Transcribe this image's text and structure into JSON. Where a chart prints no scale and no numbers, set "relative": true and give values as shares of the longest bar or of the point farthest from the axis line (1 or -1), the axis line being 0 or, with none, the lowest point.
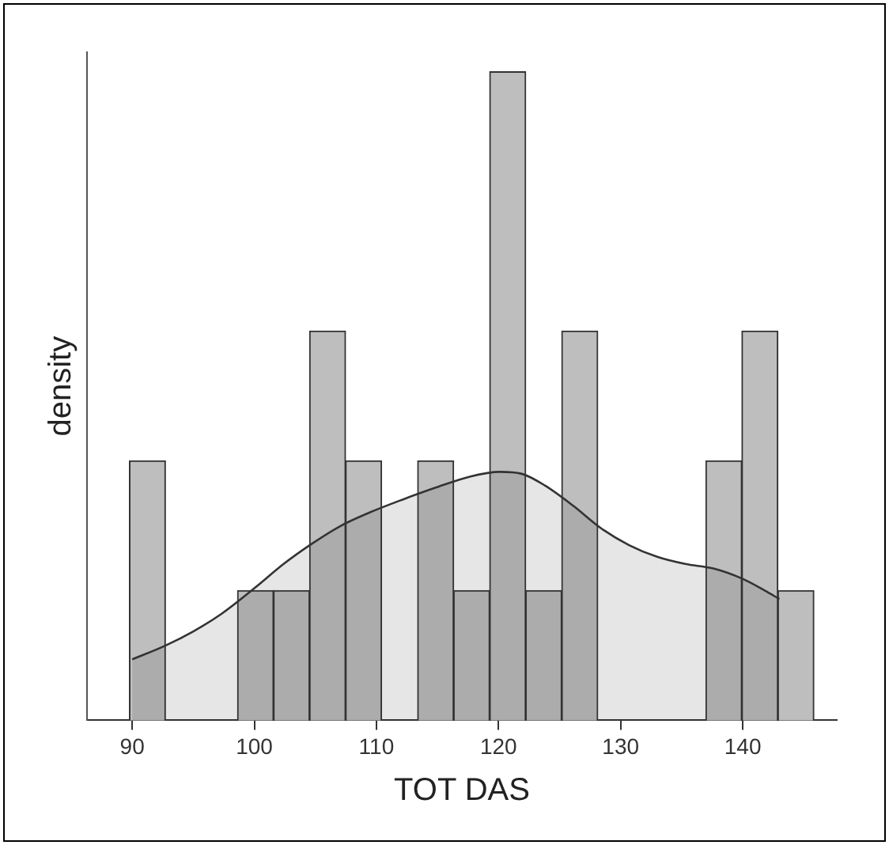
{
  "chart_data": {
    "type": "histogram",
    "xlabel": "TOT DAS",
    "ylabel": "density",
    "relative": true,
    "bins": [
      89.8,
      92.7,
      95.7,
      98.6,
      101.6,
      104.5,
      107.5,
      110.4,
      113.4,
      116.3,
      119.3,
      122.2,
      125.2,
      128.1,
      131.1,
      134.0,
      137.0,
      139.9,
      142.9,
      145.8
    ],
    "values": [
      0.4,
      0,
      0,
      0.2,
      0.2,
      0.6,
      0.4,
      0,
      0.4,
      0.2,
      1,
      0.2,
      0.6,
      0,
      0,
      0,
      0.4,
      0.6,
      0.2
    ],
    "color": "#bebebe",
    "series": [
      {
        "type": "area",
        "color": "#333333",
        "x": [
          90,
          92.7,
          95,
          97.3,
          100.1,
          102.4,
          104.7,
          107,
          109.4,
          112.1,
          114.9,
          117.7,
          120.1,
          121.9,
          123.8,
          126.1,
          128.4,
          130.7,
          133,
          135.3,
          137.6,
          140,
          141.8,
          143
        ],
        "values": [
          0.094,
          0.115,
          0.137,
          0.164,
          0.205,
          0.241,
          0.272,
          0.299,
          0.32,
          0.34,
          0.359,
          0.376,
          0.383,
          0.38,
          0.362,
          0.331,
          0.296,
          0.27,
          0.252,
          0.241,
          0.234,
          0.218,
          0.2,
          0.187
        ]
      }
    ],
    "xlim": [
      86.3,
      147.7
    ],
    "xticks": [
      90,
      100,
      110,
      120,
      130,
      140
    ],
    "grid": false,
    "legend": false
  }
}
